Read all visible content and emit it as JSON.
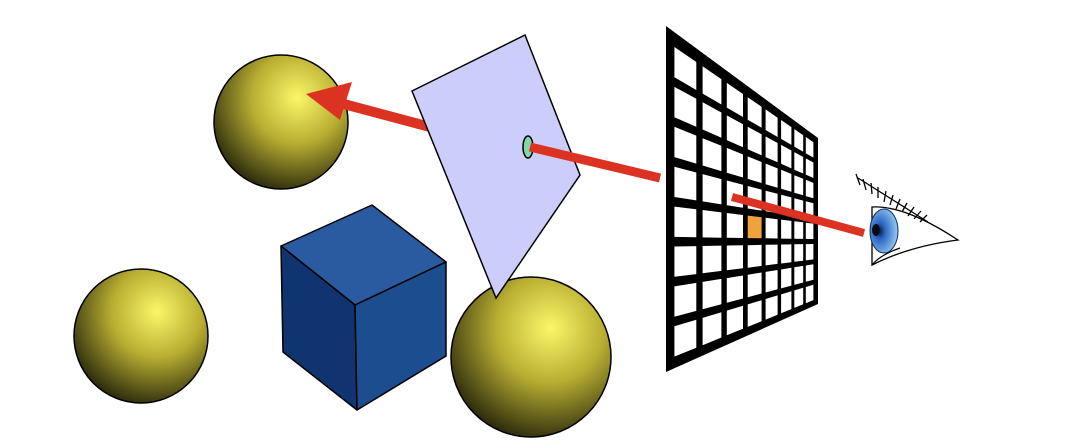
{
  "colors": {
    "background": "#ffffff",
    "sphere_highlight": "#fbf768",
    "sphere_mid": "#b8ae32",
    "sphere_shadow": "#1e1e08",
    "cube_front": "#1c4d8e",
    "cube_left": "#0f3470",
    "cube_top": "#2a5ba0",
    "plane_fill": "#cdcdfb",
    "ray": "#dc3222",
    "grid": "#000000",
    "pixel": "#f2a23c",
    "hit_point": "#7fd8a8",
    "iris": "#4a8ad8"
  },
  "icons": {
    "eye": "eye-icon",
    "arrowhead": "arrowhead-icon"
  },
  "grid": {
    "rows": 8,
    "columns": 8
  }
}
